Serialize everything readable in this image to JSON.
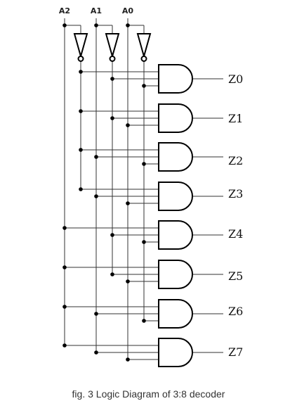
{
  "inputs": [
    "A2",
    "A1",
    "A0"
  ],
  "outputs": [
    "Z0",
    "Z1",
    "Z2",
    "Z3",
    "Z4",
    "Z5",
    "Z6",
    "Z7"
  ],
  "caption": "fig. 3 Logic Diagram of 3:8 decoder"
}
